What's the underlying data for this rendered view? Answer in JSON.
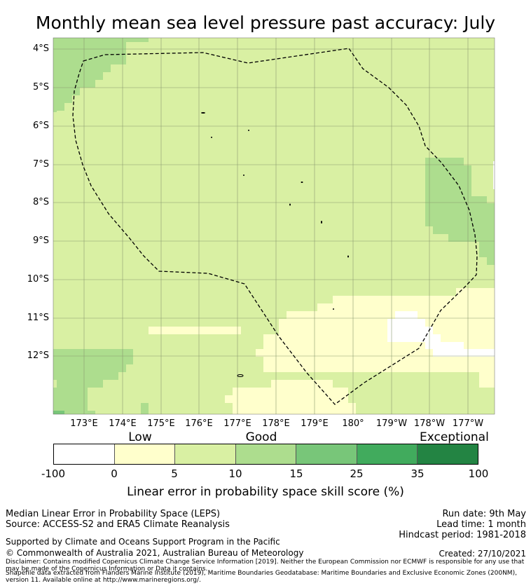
{
  "title": "Monthly mean sea level pressure past accuracy: July",
  "map": {
    "lat_labels": [
      "4°S",
      "5°S",
      "6°S",
      "7°S",
      "8°S",
      "9°S",
      "10°S",
      "11°S",
      "12°S"
    ],
    "lon_labels": [
      "173°E",
      "174°E",
      "175°E",
      "176°E",
      "177°E",
      "178°E",
      "179°E",
      "180°",
      "179°W",
      "178°W",
      "177°W"
    ],
    "extent": {
      "lon": [
        172.2,
        182.4
      ],
      "lat": [
        -13.5,
        -3.75
      ]
    }
  },
  "colorbar": {
    "qualitative": [
      "Low",
      "Good",
      "Exceptional"
    ],
    "ticks": [
      "-100",
      "0",
      "5",
      "10",
      "15",
      "25",
      "35",
      "100"
    ],
    "colors": [
      "#ffffff",
      "#ffffcc",
      "#d9f0a3",
      "#addd8e",
      "#78c679",
      "#41ab5d",
      "#238443"
    ],
    "label": "Linear error in probability space skill score (%)"
  },
  "info": {
    "method": "Median Linear Error in Probability Space (LEPS)",
    "source": "Source: ACCESS-S2 and ERA5 Climate Reanalysis",
    "run_date": "Run date: 9th May",
    "lead_time": "Lead time: 1 month",
    "hindcast": "Hindcast period: 1981-2018",
    "supported": "Supported by Climate and Oceans Support Program in the Pacific",
    "copyright": "© Commonwealth of Australia 2021, Australian Bureau of Meteorology",
    "created": "Created: 27/10/2021",
    "disclaimer": "Disclaimer: Contains modified Copernicus Climate Change Service Information [2019]. Neither the European Commission nor ECMWF is responsible for any use that may be made of the Copernicus Information or Data it contains.",
    "shapefile": "Shapefile data extracted from Flanders Marine Institute (2019), Maritime Boundaries Geodatabase: Maritime Boundaries and Exclusive Economic Zones (200NM), version 11. Available online at http://www.marineregions.org/."
  }
}
